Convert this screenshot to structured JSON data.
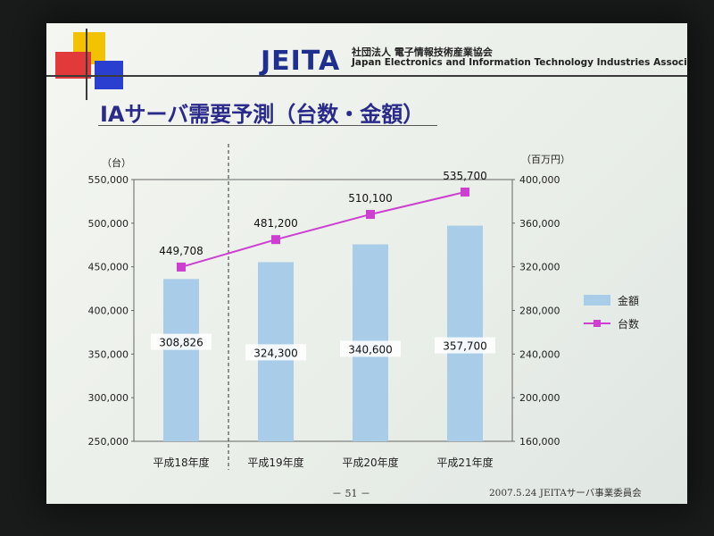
{
  "header": {
    "logo": "JEITA",
    "org_name_jp": "社団法人 電子情報技術産業協会",
    "org_name_en": "Japan Electronics and Information Technology Industries Association"
  },
  "title": "IAサーバ需要予測（台数・金額）",
  "footer": {
    "page": "－ 51 －",
    "note": "2007.5.24 JEITAサーバ事業委員会"
  },
  "chart_data": {
    "type": "bar",
    "categories": [
      "平成18年度",
      "平成19年度",
      "平成20年度",
      "平成21年度"
    ],
    "left_axis": {
      "unit_label": "（台）",
      "ticks": [
        "550,000",
        "500,000",
        "450,000",
        "400,000",
        "350,000",
        "300,000",
        "250,000"
      ],
      "range": [
        250000,
        550000
      ]
    },
    "right_axis": {
      "unit_label": "（百万円）",
      "ticks": [
        "400,000",
        "360,000",
        "320,000",
        "280,000",
        "240,000",
        "200,000",
        "160,000"
      ],
      "range": [
        160000,
        400000
      ]
    },
    "series": [
      {
        "name": "金額",
        "kind": "bar",
        "axis": "right",
        "values": [
          308826,
          324300,
          340600,
          357700
        ],
        "labels": [
          "308,826",
          "324,300",
          "340,600",
          "357,700"
        ],
        "color": "#a9cde8"
      },
      {
        "name": "台数",
        "kind": "line",
        "axis": "left",
        "values": [
          449708,
          481200,
          510100,
          535700
        ],
        "labels": [
          "449,708",
          "481,200",
          "510,100",
          "535,700"
        ],
        "color": "#cc3fd0"
      }
    ],
    "legend": "right",
    "grid": false
  }
}
